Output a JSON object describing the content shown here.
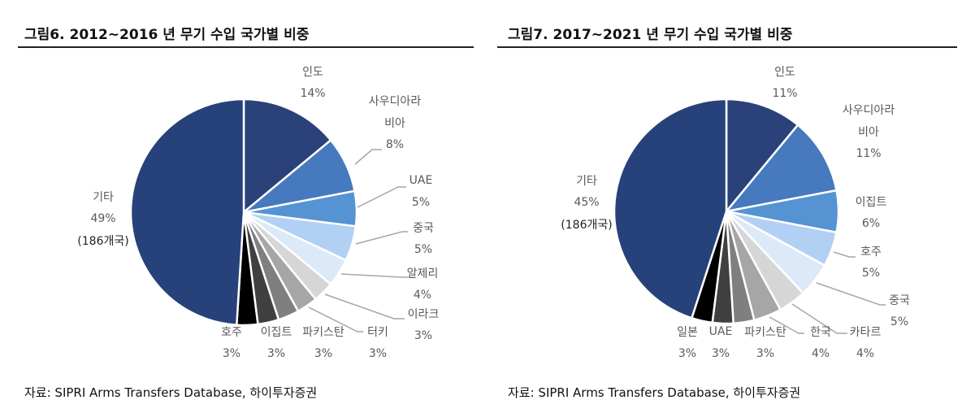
{
  "chart_data": [
    {
      "type": "pie",
      "title": "그림6.  2012~2016 년 무기 수입 국가별 비중",
      "source": "자료: SIPRI Arms Transfers Database, 하이투자증권",
      "slices": [
        {
          "label": "인도",
          "value": 14,
          "value_label": "14%",
          "color": "#2a4279"
        },
        {
          "label": "사우디아라비아",
          "label_lines": [
            "사우디아라",
            "비아"
          ],
          "value": 8,
          "value_label": "8%",
          "color": "#4679bd"
        },
        {
          "label": "UAE",
          "value": 5,
          "value_label": "5%",
          "color": "#5593d3"
        },
        {
          "label": "중국",
          "value": 5,
          "value_label": "5%",
          "color": "#b1d0f3"
        },
        {
          "label": "알제리",
          "value": 4,
          "value_label": "4%",
          "color": "#dce9f8"
        },
        {
          "label": "이라크",
          "value": 3,
          "value_label": "3%",
          "color": "#d6d6d6"
        },
        {
          "label": "터키",
          "value": 3,
          "value_label": "3%",
          "color": "#a6a6a6"
        },
        {
          "label": "파키스탄",
          "value": 3,
          "value_label": "3%",
          "color": "#7f7f7f"
        },
        {
          "label": "이집트",
          "value": 3,
          "value_label": "3%",
          "color": "#404040"
        },
        {
          "label": "호주",
          "value": 3,
          "value_label": "3%",
          "color": "#000000"
        },
        {
          "label": "기타",
          "value": 49,
          "value_label": "49%",
          "note": "(186개국)",
          "color": "#27417a"
        }
      ]
    },
    {
      "type": "pie",
      "title": "그림7.  2017~2021 년 무기 수입 국가별 비중",
      "source": "자료: SIPRI Arms Transfers Database, 하이투자증권",
      "slices": [
        {
          "label": "인도",
          "value": 11,
          "value_label": "11%",
          "color": "#2a4279"
        },
        {
          "label": "사우디아라비아",
          "label_lines": [
            "사우디아라",
            "비아"
          ],
          "value": 11,
          "value_label": "11%",
          "color": "#4679bd"
        },
        {
          "label": "이집트",
          "value": 6,
          "value_label": "6%",
          "color": "#5593d3"
        },
        {
          "label": "호주",
          "value": 5,
          "value_label": "5%",
          "color": "#b1d0f3"
        },
        {
          "label": "중국",
          "value": 5,
          "value_label": "5%",
          "color": "#dce9f8"
        },
        {
          "label": "카타르",
          "value": 4,
          "value_label": "4%",
          "color": "#d6d6d6"
        },
        {
          "label": "한국",
          "value": 4,
          "value_label": "4%",
          "color": "#a6a6a6"
        },
        {
          "label": "파키스탄",
          "value": 3,
          "value_label": "3%",
          "color": "#7f7f7f"
        },
        {
          "label": "UAE",
          "value": 3,
          "value_label": "3%",
          "color": "#404040"
        },
        {
          "label": "일본",
          "value": 3,
          "value_label": "3%",
          "color": "#000000"
        },
        {
          "label": "기타",
          "value": 45,
          "value_label": "45%",
          "note": "(186개국)",
          "color": "#27417a"
        }
      ]
    }
  ]
}
